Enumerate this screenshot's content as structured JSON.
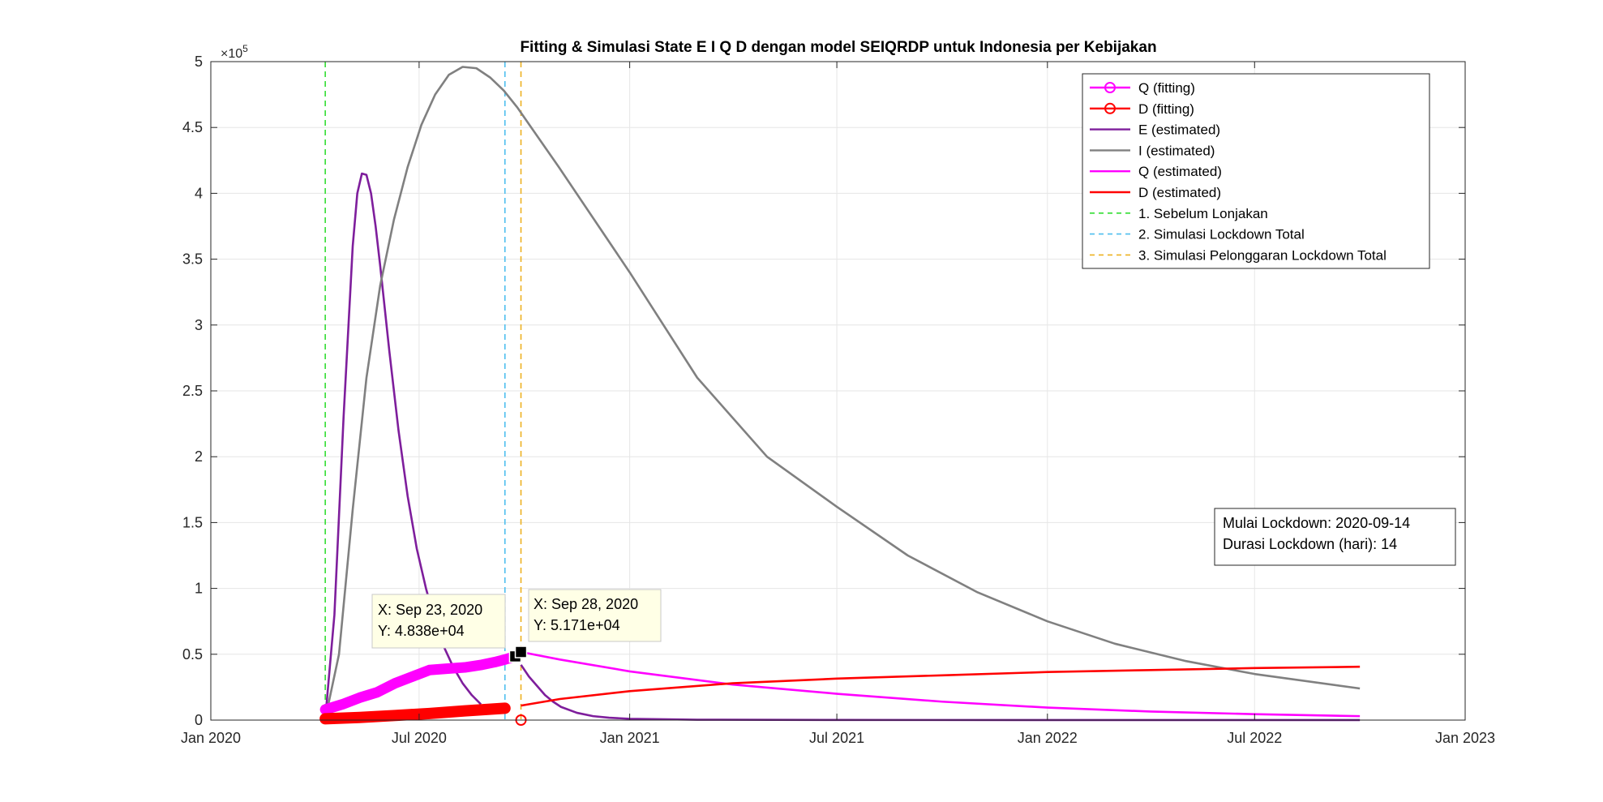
{
  "chart_data": {
    "type": "line",
    "title": "Fitting & Simulasi State  E I Q D dengan model SEIQRDP untuk Indonesia per Kebijakan",
    "xlabel": "",
    "ylabel": "",
    "y_exponent_label": "×10",
    "y_exponent_power": "5",
    "x_ticks": [
      "Jan 2020",
      "Jul 2020",
      "Jan 2021",
      "Jul 2021",
      "Jan 2022",
      "Jul 2022",
      "Jan 2023"
    ],
    "y_ticks": [
      "0",
      "0.5",
      "1",
      "1.5",
      "2",
      "2.5",
      "3",
      "3.5",
      "4",
      "4.5",
      "5"
    ],
    "xlim": [
      "2020-01-01",
      "2023-01-01"
    ],
    "ylim": [
      0,
      500000
    ],
    "grid": true,
    "legend_position": "top-right",
    "legend": [
      {
        "label": "Q (fitting)",
        "color": "#ff00ff",
        "style": "line-marker"
      },
      {
        "label": "D (fitting)",
        "color": "#ff0000",
        "style": "line-marker"
      },
      {
        "label": "E (estimated)",
        "color": "#7e1e9c",
        "style": "line"
      },
      {
        "label": "I (estimated)",
        "color": "#808080",
        "style": "line"
      },
      {
        "label": "Q (estimated)",
        "color": "#ff00ff",
        "style": "line"
      },
      {
        "label": "D (estimated)",
        "color": "#ff0000",
        "style": "line"
      },
      {
        "label": "1. Sebelum Lonjakan",
        "color": "#33dd33",
        "style": "dashed"
      },
      {
        "label": "2. Simulasi Lockdown Total",
        "color": "#4dbeee",
        "style": "dashed"
      },
      {
        "label": "3. Simulasi Pelonggaran Lockdown Total",
        "color": "#edb120",
        "style": "dashed"
      }
    ],
    "vertical_lines": [
      {
        "date": "2020-04-10",
        "color": "#33dd33"
      },
      {
        "date": "2020-09-14",
        "color": "#4dbeee"
      },
      {
        "date": "2020-09-28",
        "color": "#edb120"
      }
    ],
    "series": [
      {
        "name": "E (estimated)",
        "color": "#7e1e9c",
        "x": [
          "2020-04-10",
          "2020-04-18",
          "2020-04-26",
          "2020-05-04",
          "2020-05-08",
          "2020-05-12",
          "2020-05-16",
          "2020-05-20",
          "2020-05-24",
          "2020-05-28",
          "2020-06-05",
          "2020-06-13",
          "2020-06-21",
          "2020-06-29",
          "2020-07-07",
          "2020-07-15",
          "2020-07-23",
          "2020-07-31",
          "2020-08-08",
          "2020-08-16",
          "2020-08-24"
        ],
        "values": [
          1000,
          80000,
          230000,
          360000,
          400000,
          415000,
          414000,
          400000,
          375000,
          345000,
          280000,
          220000,
          170000,
          130000,
          100000,
          75000,
          55000,
          40000,
          28000,
          19000,
          12000
        ]
      },
      {
        "name": "E (estimated)",
        "color": "#7e1e9c",
        "x": [
          "2020-09-28",
          "2020-10-05",
          "2020-10-12",
          "2020-10-19",
          "2020-10-26",
          "2020-11-02",
          "2020-11-16",
          "2020-11-30",
          "2020-12-14",
          "2021-01-01",
          "2021-03-01",
          "2021-07-01",
          "2022-01-01",
          "2022-07-01",
          "2022-10-01"
        ],
        "values": [
          42000,
          33000,
          26000,
          19000,
          14000,
          10000,
          5500,
          3000,
          1800,
          1000,
          300,
          100,
          50,
          20,
          10
        ]
      },
      {
        "name": "I (estimated)",
        "color": "#808080",
        "x": [
          "2020-04-10",
          "2020-04-22",
          "2020-05-04",
          "2020-05-16",
          "2020-05-28",
          "2020-06-09",
          "2020-06-21",
          "2020-07-03",
          "2020-07-15",
          "2020-07-27",
          "2020-08-08",
          "2020-08-20",
          "2020-09-01",
          "2020-09-13",
          "2020-09-25",
          "2020-10-07",
          "2020-10-31",
          "2020-12-01",
          "2021-01-01",
          "2021-03-01",
          "2021-05-01",
          "2021-07-01",
          "2021-09-01",
          "2021-11-01",
          "2022-01-01",
          "2022-03-01",
          "2022-05-01",
          "2022-07-01",
          "2022-10-01"
        ],
        "values": [
          1000,
          50000,
          160000,
          260000,
          330000,
          380000,
          420000,
          452000,
          475000,
          490000,
          496000,
          495000,
          488000,
          478000,
          465000,
          450000,
          420000,
          380000,
          340000,
          260000,
          200000,
          162000,
          125000,
          97000,
          75000,
          58000,
          45000,
          35000,
          24000
        ]
      },
      {
        "name": "Q (estimated)",
        "color": "#ff00ff",
        "x": [
          "2020-09-28",
          "2020-11-01",
          "2021-01-01",
          "2021-04-01",
          "2021-07-01",
          "2021-10-01",
          "2022-01-01",
          "2022-04-01",
          "2022-07-01",
          "2022-10-01"
        ],
        "values": [
          51710,
          46000,
          37000,
          27000,
          20000,
          14000,
          9500,
          6500,
          4500,
          3000
        ]
      },
      {
        "name": "D (estimated)",
        "color": "#ff0000",
        "x": [
          "2020-09-28",
          "2020-11-01",
          "2021-01-01",
          "2021-04-01",
          "2021-07-01",
          "2021-10-01",
          "2022-01-01",
          "2022-04-01",
          "2022-07-01",
          "2022-10-01"
        ],
        "values": [
          11000,
          16000,
          22000,
          28000,
          31500,
          34000,
          36500,
          38000,
          39500,
          40500
        ]
      },
      {
        "name": "Q (fitting)",
        "color": "#ff00ff",
        "x": [
          "2020-04-10",
          "2020-04-25",
          "2020-05-10",
          "2020-05-25",
          "2020-06-10",
          "2020-06-25",
          "2020-07-10",
          "2020-07-25",
          "2020-08-10",
          "2020-08-25",
          "2020-09-05",
          "2020-09-14",
          "2020-09-23"
        ],
        "values": [
          8000,
          12000,
          17000,
          21000,
          28000,
          33000,
          38000,
          39000,
          40000,
          42000,
          44000,
          46000,
          48380
        ]
      },
      {
        "name": "D (fitting)",
        "color": "#ff0000",
        "x": [
          "2020-04-10",
          "2020-05-10",
          "2020-06-10",
          "2020-07-10",
          "2020-08-10",
          "2020-09-14",
          "2020-09-28"
        ],
        "values": [
          1000,
          2000,
          3500,
          5000,
          7000,
          9000,
          0
        ]
      }
    ]
  },
  "datatips": [
    {
      "x_text": "X: Sep 23, 2020",
      "y_text": "Y: 4.838e+04",
      "date": "2020-09-23",
      "value": 48380
    },
    {
      "x_text": "X: Sep 28, 2020",
      "y_text": "Y: 5.171e+04",
      "date": "2020-09-28",
      "value": 51710
    }
  ],
  "info_box": {
    "line1": "Mulai Lockdown: 2020-09-14",
    "line2": "Durasi Lockdown (hari): 14"
  }
}
